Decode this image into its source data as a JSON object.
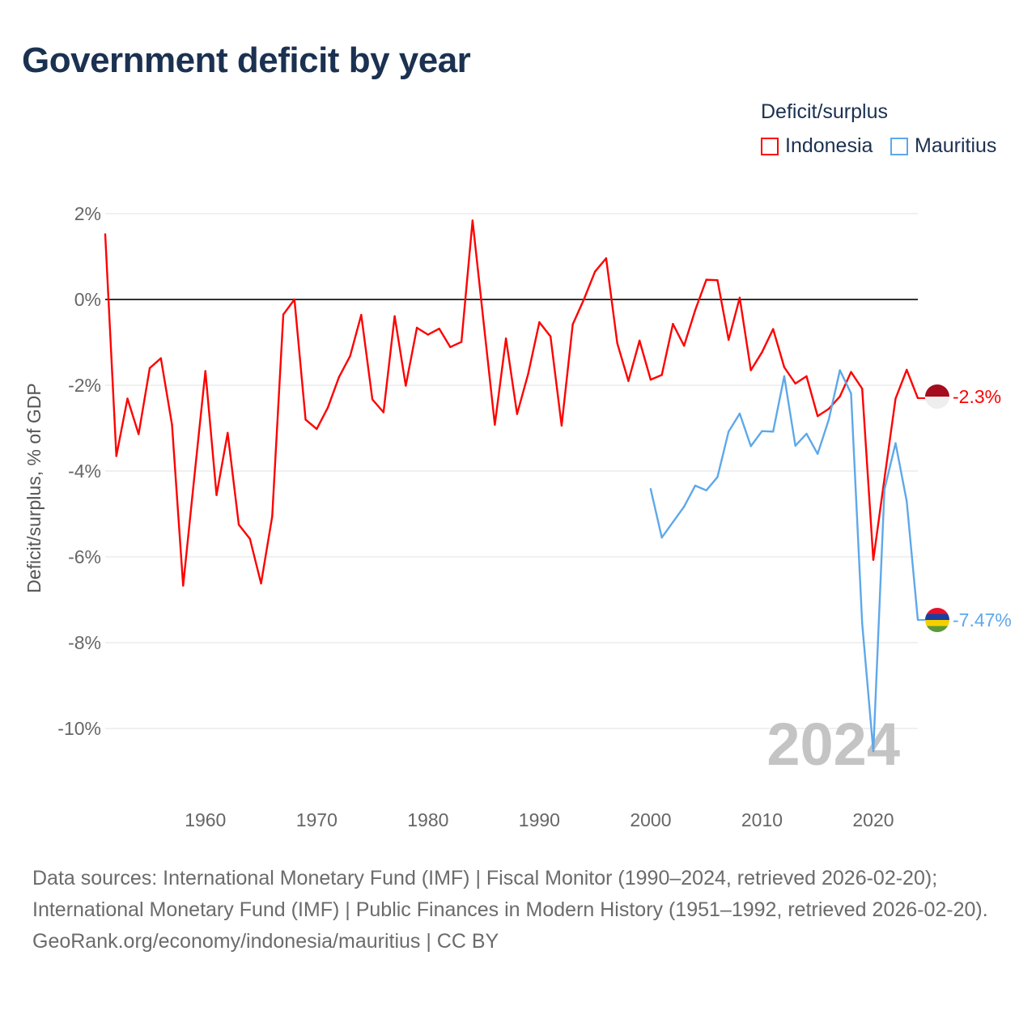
{
  "title": "Government deficit by year",
  "legend": {
    "title": "Deficit/surplus",
    "items": [
      {
        "label": "Indonesia",
        "color": "#ff0000"
      },
      {
        "label": "Mauritius",
        "color": "#5ea8ea"
      }
    ]
  },
  "footer": {
    "sources": "Data sources: International Monetary Fund (IMF) | Fiscal Monitor (1990–2024, retrieved 2026-02-20); International Monetary Fund (IMF) | Public Finances in Modern History (1951–1992, retrieved 2026-02-20).",
    "credit": "GeoRank.org/economy/indonesia/mauritius | CC BY"
  },
  "chart_data": {
    "type": "line",
    "title": "Government deficit by year",
    "xlabel": "",
    "ylabel": "Deficit/surplus, % of GDP",
    "xlim": [
      1951,
      2024
    ],
    "ylim": [
      -11.2,
      2.2
    ],
    "x_ticks": [
      1960,
      1970,
      1980,
      1990,
      2000,
      2010,
      2020
    ],
    "y_ticks": [
      2,
      0,
      -2,
      -4,
      -6,
      -8,
      -10
    ],
    "y_tick_labels": [
      "2%",
      "0%",
      "-2%",
      "-4%",
      "-6%",
      "-8%",
      "-10%"
    ],
    "grid": true,
    "legend_position": "top-right",
    "year_watermark": "2024",
    "series": [
      {
        "name": "Indonesia",
        "color": "#ff0000",
        "start_year": 1951,
        "end_label": "-2.3%",
        "values": [
          1.52,
          -3.65,
          -2.31,
          -3.14,
          -1.6,
          -1.37,
          -2.92,
          -6.67,
          -4.15,
          -1.67,
          -4.56,
          -3.11,
          -5.25,
          -5.58,
          -6.62,
          -5.06,
          -0.35,
          0.0,
          -2.8,
          -3.02,
          -2.52,
          -1.81,
          -1.32,
          -0.36,
          -2.33,
          -2.63,
          -0.39,
          -2.01,
          -0.66,
          -0.82,
          -0.68,
          -1.11,
          -0.99,
          1.84,
          -0.55,
          -2.92,
          -0.91,
          -2.67,
          -1.73,
          -0.53,
          -0.86,
          -2.94,
          -0.58,
          0.0,
          0.65,
          0.96,
          -1.02,
          -1.9,
          -0.96,
          -1.87,
          -1.76,
          -0.57,
          -1.08,
          -0.25,
          0.46,
          0.45,
          -0.94,
          0.04,
          -1.65,
          -1.23,
          -0.69,
          -1.58,
          -1.96,
          -1.79,
          -2.72,
          -2.55,
          -2.26,
          -1.69,
          -2.08,
          -6.07,
          -4.18,
          -2.31,
          -1.64,
          -2.3
        ]
      },
      {
        "name": "Mauritius",
        "color": "#5ea8ea",
        "start_year": 2000,
        "end_label": "-7.47%",
        "values": [
          -4.42,
          -5.55,
          -5.19,
          -4.83,
          -4.34,
          -4.45,
          -4.14,
          -3.08,
          -2.66,
          -3.42,
          -3.07,
          -3.08,
          -1.79,
          -3.41,
          -3.13,
          -3.6,
          -2.8,
          -1.65,
          -2.19,
          -7.55,
          -10.53,
          -4.43,
          -3.35,
          -4.7,
          -7.47
        ]
      }
    ]
  }
}
